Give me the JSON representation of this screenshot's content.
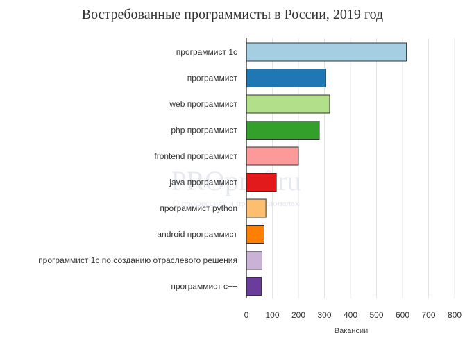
{
  "chart_data": {
    "type": "bar",
    "orientation": "horizontal",
    "title": "Востребованные программисты в России, 2019 год",
    "xlabel": "Вакансии",
    "ylabel": "",
    "xlim": [
      0,
      800
    ],
    "xticks": [
      0,
      100,
      200,
      300,
      400,
      500,
      600,
      700,
      800
    ],
    "grid": true,
    "categories": [
      "программист 1с",
      "программист",
      "web программист",
      "php программист",
      "frontend программист",
      "java программист",
      "программист python",
      "android программист",
      "программист 1с по созданию отраслевого решения",
      "программист c++"
    ],
    "values": [
      615,
      305,
      320,
      280,
      200,
      115,
      75,
      68,
      60,
      58
    ],
    "colors": [
      "#a6cee3",
      "#1f78b4",
      "#b2df8a",
      "#33a02c",
      "#fb9a99",
      "#e31a1c",
      "#fdbf6f",
      "#ff7f00",
      "#cab2d6",
      "#6a3d9a"
    ]
  },
  "watermark": {
    "main": "PROprof.ru",
    "sub": "О профессиях и профессионалах"
  }
}
